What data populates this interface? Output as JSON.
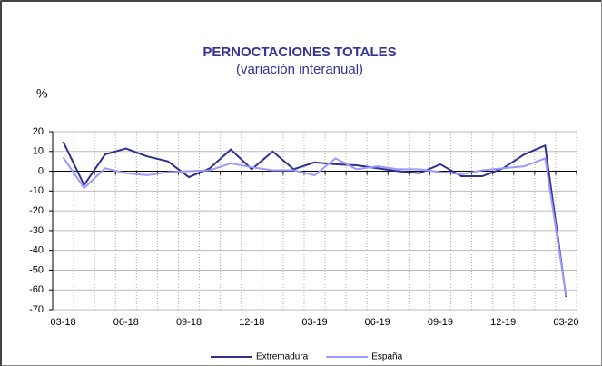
{
  "chart_data": {
    "type": "line",
    "title": "PERNOCTACIONES TOTALES",
    "subtitle": "(variación interanual)",
    "y_label": "%",
    "categories": [
      "03-18",
      null,
      null,
      "06-18",
      null,
      null,
      "09-18",
      null,
      null,
      "12-18",
      null,
      null,
      "03-19",
      null,
      null,
      "06-19",
      null,
      null,
      "09-19",
      null,
      null,
      "12-19",
      null,
      null,
      "03-20"
    ],
    "series": [
      {
        "name": "Extremadura",
        "color": "#2e3192",
        "values": [
          15,
          -7,
          8.5,
          11.5,
          7.5,
          5,
          -3,
          1.5,
          11,
          1,
          10,
          1,
          4.5,
          3.5,
          3,
          1.5,
          0,
          -1,
          3.5,
          -2.5,
          -2.5,
          1.5,
          8.5,
          13,
          -63.5
        ]
      },
      {
        "name": "España",
        "color": "#9999ff",
        "values": [
          7,
          -8.5,
          1.5,
          -1,
          -2,
          -0.5,
          0,
          0.5,
          4,
          2,
          0.5,
          0.5,
          -2,
          6.5,
          1,
          2.5,
          1,
          1,
          -0.5,
          -1.5,
          0.5,
          1.5,
          2.5,
          6.5,
          -63
        ]
      }
    ],
    "ylim": [
      -70,
      20
    ],
    "yticks": [
      -70,
      -60,
      -50,
      -40,
      -30,
      -20,
      -10,
      0,
      10,
      20
    ],
    "grid": true,
    "legend": "bottom"
  }
}
